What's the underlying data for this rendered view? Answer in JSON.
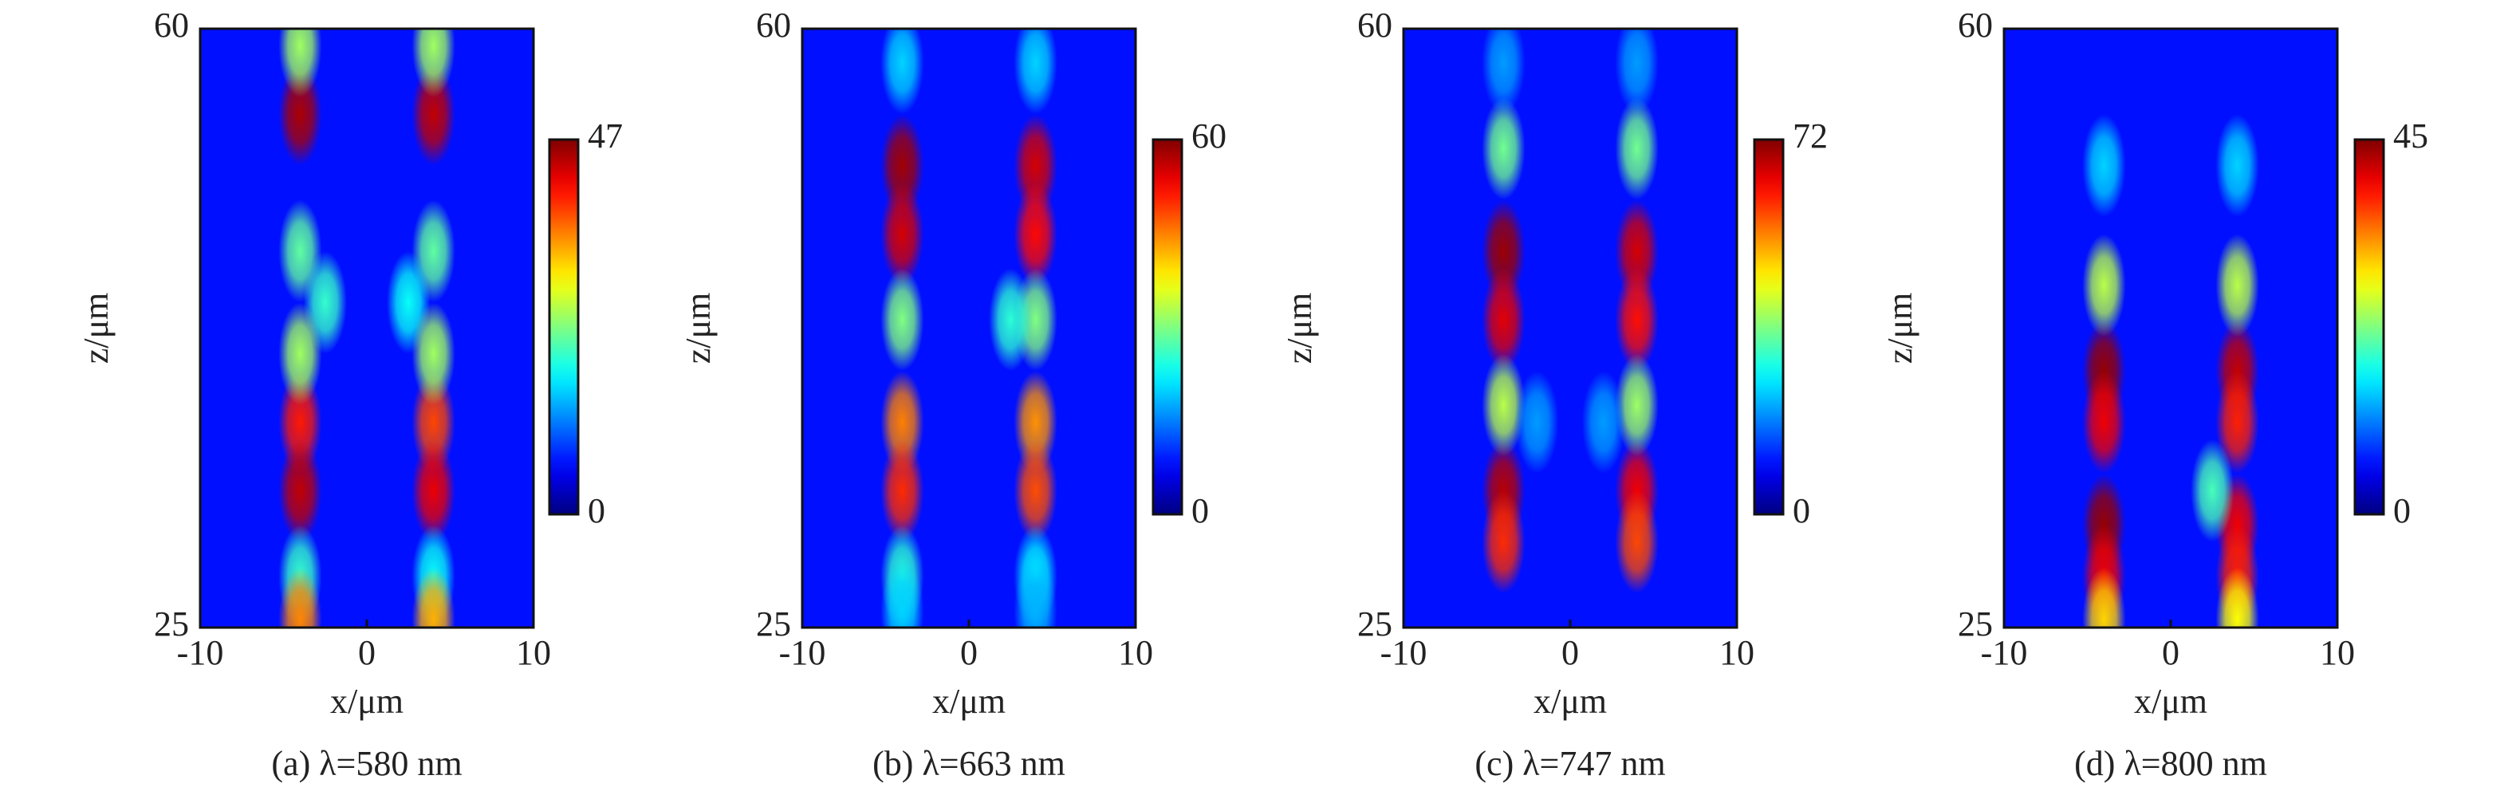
{
  "chart_data": [
    {
      "type": "heatmap",
      "title": "(a) λ=580 nm",
      "xlabel": "x/μm",
      "ylabel": "z/μm",
      "xlim": [
        -10,
        10
      ],
      "xticks": [
        -10,
        0,
        10
      ],
      "ylim": [
        25,
        60
      ],
      "yticks": [
        25,
        60
      ],
      "clim": [
        0,
        47
      ],
      "cticks": [
        0,
        47
      ],
      "colormap": "jet",
      "peaks": {
        "x": [
          -4,
          4,
          -4,
          4,
          -4,
          4,
          -4,
          4,
          -4,
          4,
          -4,
          4,
          -4,
          4,
          -2.5,
          2.5,
          -4,
          4
        ],
        "z": [
          55,
          55,
          59,
          59,
          37,
          37,
          33,
          33,
          28,
          28,
          25.5,
          25.5,
          47,
          47,
          44,
          44,
          41,
          41
        ],
        "values": [
          45,
          44,
          25,
          25,
          40,
          38,
          44,
          42,
          20,
          18,
          35,
          33,
          22,
          22,
          20,
          18,
          25,
          25
        ]
      }
    },
    {
      "type": "heatmap",
      "title": "(b) λ=663 nm",
      "xlabel": "x/μm",
      "ylabel": "z/μm",
      "xlim": [
        -10,
        10
      ],
      "xticks": [
        -10,
        0,
        10
      ],
      "ylim": [
        25,
        60
      ],
      "yticks": [
        25,
        60
      ],
      "clim": [
        0,
        60
      ],
      "cticks": [
        0,
        60
      ],
      "colormap": "jet",
      "peaks": {
        "x": [
          -4,
          4,
          -4,
          4,
          -4,
          4,
          -4,
          4,
          -4,
          4,
          -4,
          4,
          -4,
          4,
          2.5,
          -4,
          4
        ],
        "z": [
          52,
          52,
          48,
          48,
          37,
          37,
          33,
          33,
          28,
          28,
          58,
          58,
          43,
          43,
          43,
          26,
          26
        ],
        "values": [
          58,
          55,
          55,
          52,
          45,
          44,
          50,
          48,
          25,
          22,
          20,
          20,
          30,
          30,
          25,
          20,
          18
        ]
      }
    },
    {
      "type": "heatmap",
      "title": "(c) λ=747 nm",
      "xlabel": "x/μm",
      "ylabel": "z/μm",
      "xlim": [
        -10,
        10
      ],
      "xticks": [
        -10,
        0,
        10
      ],
      "ylim": [
        25,
        60
      ],
      "yticks": [
        25,
        60
      ],
      "clim": [
        0,
        72
      ],
      "cticks": [
        0,
        72
      ],
      "colormap": "jet",
      "peaks": {
        "x": [
          -4,
          4,
          -4,
          4,
          -4,
          4,
          -4,
          4,
          -4,
          4,
          -4,
          4,
          -4,
          4,
          -2,
          2
        ],
        "z": [
          47,
          47,
          43,
          43,
          33,
          33,
          30,
          30,
          53,
          53,
          58,
          58,
          38,
          38,
          37,
          37
        ],
        "values": [
          70,
          66,
          65,
          62,
          68,
          64,
          60,
          58,
          35,
          35,
          20,
          20,
          40,
          38,
          20,
          20
        ]
      }
    },
    {
      "type": "heatmap",
      "title": "(d) λ=800 nm",
      "xlabel": "x/μm",
      "ylabel": "z/μm",
      "xlim": [
        -10,
        10
      ],
      "xticks": [
        -10,
        0,
        10
      ],
      "ylim": [
        25,
        60
      ],
      "yticks": [
        25,
        60
      ],
      "clim": [
        0,
        45
      ],
      "cticks": [
        0,
        45
      ],
      "colormap": "jet",
      "peaks": {
        "x": [
          -4,
          4,
          -4,
          4,
          -4,
          4,
          -4,
          4,
          -4,
          4,
          -4,
          4,
          -4,
          4,
          2.5
        ],
        "z": [
          40,
          40,
          37,
          37,
          31,
          31,
          28,
          28,
          45,
          45,
          52,
          52,
          25.5,
          25.5,
          33
        ],
        "values": [
          44,
          42,
          40,
          38,
          44,
          40,
          40,
          38,
          25,
          25,
          15,
          15,
          30,
          28,
          20
        ]
      }
    }
  ]
}
